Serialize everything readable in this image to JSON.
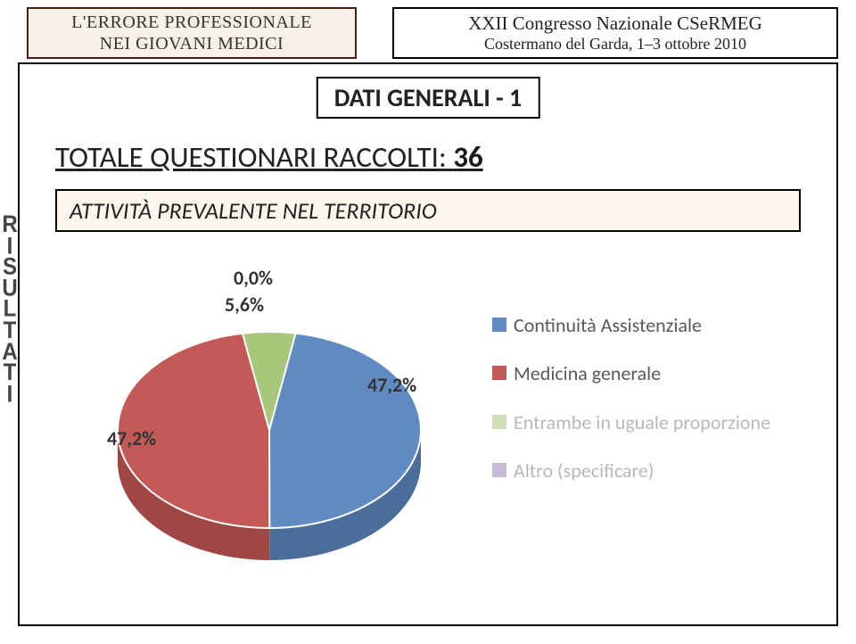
{
  "header": {
    "left_line1": "L'ERRORE PROFESSIONALE",
    "left_line2": "NEI GIOVANI MEDICI",
    "right_line1": "XXII Congresso Nazionale CSeRMEG",
    "right_line2": "Costermano del Garda, 1–3 ottobre 2010",
    "left_bg": "#f7f0e6",
    "left_border": "#4a1d0f"
  },
  "section_title": "DATI GENERALI - 1",
  "questionari_prefix": "TOTALE QUESTIONARI RACCOLTI: ",
  "questionari_value": "36",
  "sidebar": [
    "R",
    "I",
    "S",
    "U",
    "L",
    "T",
    "A",
    "T",
    "I"
  ],
  "attivita_label": "ATTIVITÀ PREVALENTE NEL TERRITORIO",
  "attivita_bg": "#fdf6ed",
  "chart": {
    "type": "pie-3d",
    "background_color": "#ffffff",
    "title_fontsize": 26,
    "label_fontsize": 22,
    "label_weight": "bold",
    "label_color": "#333333",
    "slices": [
      {
        "label": "Continuità Assistenziale",
        "value": 47.2,
        "pct": "47,2%",
        "color": "#5f8bc2",
        "side_color": "#4a6d99"
      },
      {
        "label": "Medicina generale",
        "value": 47.2,
        "pct": "47,2%",
        "color": "#c45a58",
        "side_color": "#9e4744"
      },
      {
        "label": "Entrambe in uguale proporzione",
        "value": 5.6,
        "pct": "5,6%",
        "color": "#a7c77b",
        "side_color": "#86a35f"
      },
      {
        "label": "Altro (specificare)",
        "value": 0.0,
        "pct": "0,0%",
        "color": "#9a85b6",
        "side_color": "#7a6991"
      }
    ],
    "legend_inactive_color": "#b8b8b8",
    "legend_fontsize": 22,
    "legend_color": "#595959"
  }
}
